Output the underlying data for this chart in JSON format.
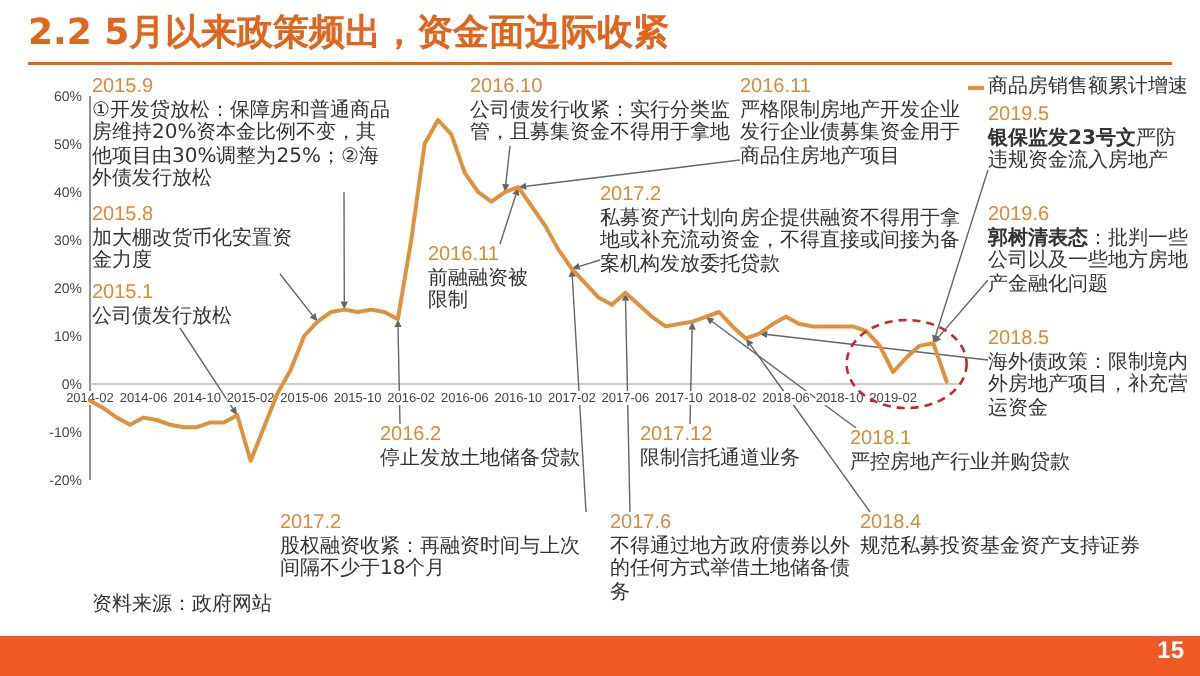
{
  "chart_data": {
    "type": "line",
    "title": "2.2 5月以来政策频出，资金面边际收紧",
    "x": [
      "2014-02",
      "2014-03",
      "2014-04",
      "2014-05",
      "2014-06",
      "2014-07",
      "2014-08",
      "2014-09",
      "2014-10",
      "2014-11",
      "2014-12",
      "2015-01",
      "2015-02",
      "2015-03",
      "2015-04",
      "2015-05",
      "2015-06",
      "2015-07",
      "2015-08",
      "2015-09",
      "2015-10",
      "2015-11",
      "2015-12",
      "2016-01",
      "2016-02",
      "2016-03",
      "2016-04",
      "2016-05",
      "2016-06",
      "2016-07",
      "2016-08",
      "2016-09",
      "2016-10",
      "2016-11",
      "2016-12",
      "2017-01",
      "2017-02",
      "2017-03",
      "2017-04",
      "2017-05",
      "2017-06",
      "2017-07",
      "2017-08",
      "2017-09",
      "2017-10",
      "2017-11",
      "2017-12",
      "2018-01",
      "2018-02",
      "2018-03",
      "2018-04",
      "2018-05",
      "2018-06",
      "2018-07",
      "2018-08",
      "2018-09",
      "2018-10",
      "2018-11",
      "2018-12",
      "2019-01",
      "2019-02",
      "2019-03",
      "2019-04",
      "2019-05",
      "2019-06"
    ],
    "series": [
      {
        "name": "商品房销售额累计增速",
        "color": "#e0913f",
        "values": [
          -3.5,
          -5,
          -7,
          -8.5,
          -7,
          -7.5,
          -8.5,
          -9,
          -9,
          -8,
          -8,
          -6.5,
          -16,
          -9,
          -2,
          3,
          10,
          13,
          15,
          15.5,
          15,
          15.5,
          15,
          13.5,
          30,
          50,
          55,
          52,
          44,
          40,
          38,
          40,
          41,
          37,
          33,
          28,
          24,
          21,
          18,
          16.5,
          19,
          16.5,
          14,
          12,
          12.5,
          13,
          14,
          15,
          12,
          9.5,
          10.5,
          12.5,
          14,
          12.5,
          12,
          12,
          12,
          12,
          11,
          8,
          2.5,
          5.5,
          8,
          8.5,
          0.5
        ]
      }
    ],
    "xlim": [
      "2014-02",
      "2019-07"
    ],
    "ylim": [
      -20,
      60
    ],
    "xticks": [
      "2014-02",
      "2014-06",
      "2014-10",
      "2015-02",
      "2015-06",
      "2015-10",
      "2016-02",
      "2016-06",
      "2016-10",
      "2017-02",
      "2017-06",
      "2017-10",
      "2018-02",
      "2018-06",
      "2018-10",
      "2019-02"
    ],
    "yticks": [
      {
        "value": -20,
        "label": "-20%"
      },
      {
        "value": -10,
        "label": "-10%"
      },
      {
        "value": 0,
        "label": "0%"
      },
      {
        "value": 10,
        "label": "10%"
      },
      {
        "value": 20,
        "label": "20%"
      },
      {
        "value": 30,
        "label": "30%"
      },
      {
        "value": 40,
        "label": "40%"
      },
      {
        "value": 50,
        "label": "50%"
      },
      {
        "value": 60,
        "label": "60%"
      }
    ],
    "legend": "top right",
    "annotations": [
      {
        "text": "2015.1 公司债发行放松",
        "x": "2015-01",
        "y": -6.5
      },
      {
        "text": "2015.8 加大棚改货币化安置资金力度",
        "x": "2015-07",
        "y": 13
      },
      {
        "text": "2015.9 ①开发贷放松：保障房和普通商品房维持20%资本金比例不变，其他项目由30%调整为25%；②海外债发行放松",
        "x": "2015-09",
        "y": 15.5
      },
      {
        "text": "2016.2 停止发放土地储备贷款",
        "x": "2016-01",
        "y": 13.5
      },
      {
        "text": "2016.10 公司债发行收紧：实行分类监管，且募集资金不得用于拿地",
        "x": "2016-09",
        "y": 40
      },
      {
        "text": "2016.11 严格限制房地产开发企业发行企业债募集资金用于商品住房地产项目",
        "x": "2016-10",
        "y": 41
      },
      {
        "text": "2016.11 前融融资被限制",
        "x": "2016-10",
        "y": 41
      },
      {
        "text": "2017.2 私募资产计划向房企提供融资不得用于拿地或补充流动资金，不得直接或间接为备案机构发放委托贷款",
        "x": "2017-02",
        "y": 24
      },
      {
        "text": "2017.2 股权融资收紧：再融资时间与上次间隔不少于18个月",
        "x": "2017-02",
        "y": 24
      },
      {
        "text": "2017.6 不得通过地方政府债券以外的任何方式举借土地储备债务",
        "x": "2017-06",
        "y": 19
      },
      {
        "text": "2017.12 限制信托通道业务",
        "x": "2017-11",
        "y": 13
      },
      {
        "text": "2018.1 严控房地产行业并购贷款",
        "x": "2017-12",
        "y": 14
      },
      {
        "text": "2018.4 规范私募投资基金资产支持证券",
        "x": "2018-03",
        "y": 9.5
      },
      {
        "text": "2018.5 海外债政策：限制境内外房地产项目，补充营运资金",
        "x": "2018-04",
        "y": 10.5
      },
      {
        "text": "2019.5 **银保监发23号文**严防违规资金流入房地产",
        "x": "2019-05",
        "y": 8.5
      },
      {
        "text": "2019.6 **郭树清表态**：批判一些公司以及一些地方房地产金融化问题",
        "x": "2019-05",
        "y": 8.5
      },
      "资料来源：政府网站",
      "15"
    ]
  }
}
